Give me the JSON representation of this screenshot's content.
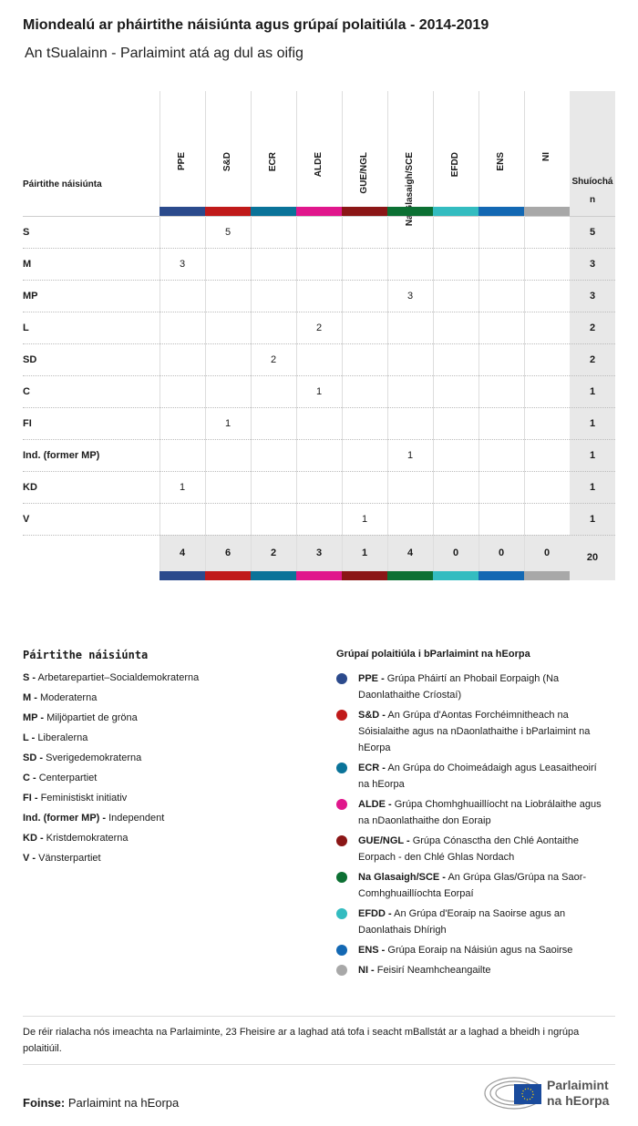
{
  "title": "Miondealú ar pháirtithe náisiúnta agus grúpaí polaitiúla - 2014-2019",
  "subtitle": "An tSualainn - Parlaimint atá ag dul as oifig",
  "chart_data": {
    "type": "table",
    "row_header": "Páirtithe náisiúnta",
    "total_header": "Shuíochán",
    "columns": [
      {
        "label": "PPE",
        "color": "#2b4a8c"
      },
      {
        "label": "S&D",
        "color": "#c01a1a"
      },
      {
        "label": "ECR",
        "color": "#0a7399"
      },
      {
        "label": "ALDE",
        "color": "#e0178c"
      },
      {
        "label": "GUE/NGL",
        "color": "#8b1616"
      },
      {
        "label": "Na Glasaigh/SCE",
        "color": "#0c7033"
      },
      {
        "label": "EFDD",
        "color": "#33bcc0"
      },
      {
        "label": "ENS",
        "color": "#1368b3"
      },
      {
        "label": "NI",
        "color": "#a8a8a8"
      }
    ],
    "rows": [
      {
        "party": "S",
        "values": [
          null,
          5,
          null,
          null,
          null,
          null,
          null,
          null,
          null
        ],
        "total": 5
      },
      {
        "party": "M",
        "values": [
          3,
          null,
          null,
          null,
          null,
          null,
          null,
          null,
          null
        ],
        "total": 3
      },
      {
        "party": "MP",
        "values": [
          null,
          null,
          null,
          null,
          null,
          3,
          null,
          null,
          null
        ],
        "total": 3
      },
      {
        "party": "L",
        "values": [
          null,
          null,
          null,
          2,
          null,
          null,
          null,
          null,
          null
        ],
        "total": 2
      },
      {
        "party": "SD",
        "values": [
          null,
          null,
          2,
          null,
          null,
          null,
          null,
          null,
          null
        ],
        "total": 2
      },
      {
        "party": "C",
        "values": [
          null,
          null,
          null,
          1,
          null,
          null,
          null,
          null,
          null
        ],
        "total": 1
      },
      {
        "party": "FI",
        "values": [
          null,
          1,
          null,
          null,
          null,
          null,
          null,
          null,
          null
        ],
        "total": 1
      },
      {
        "party": "Ind. (former MP)",
        "values": [
          null,
          null,
          null,
          null,
          null,
          1,
          null,
          null,
          null
        ],
        "total": 1
      },
      {
        "party": "KD",
        "values": [
          1,
          null,
          null,
          null,
          null,
          null,
          null,
          null,
          null
        ],
        "total": 1
      },
      {
        "party": "V",
        "values": [
          null,
          null,
          null,
          null,
          1,
          null,
          null,
          null,
          null
        ],
        "total": 1
      }
    ],
    "column_totals": [
      4,
      6,
      2,
      3,
      1,
      4,
      0,
      0,
      0
    ],
    "grand_total": 20
  },
  "legend_parties": {
    "heading": "Páirtithe náisiúnta",
    "items": [
      {
        "abbr": "S -",
        "name": "Arbetarepartiet–Socialdemokraterna"
      },
      {
        "abbr": "M -",
        "name": "Moderaterna"
      },
      {
        "abbr": "MP -",
        "name": "Miljöpartiet de gröna"
      },
      {
        "abbr": "L -",
        "name": "Liberalerna"
      },
      {
        "abbr": "SD -",
        "name": "Sverigedemokraterna"
      },
      {
        "abbr": "C -",
        "name": "Centerpartiet"
      },
      {
        "abbr": "FI -",
        "name": "Feministiskt initiativ"
      },
      {
        "abbr": "Ind. (former MP) -",
        "name": "Independent"
      },
      {
        "abbr": "KD -",
        "name": "Kristdemokraterna"
      },
      {
        "abbr": "V -",
        "name": "Vänsterpartiet"
      }
    ]
  },
  "legend_groups": {
    "heading": "Grúpaí polaitiúla i bParlaimint na hEorpa",
    "items": [
      {
        "abbr": "PPE -",
        "name": "Grúpa Pháirtí an Phobail Eorpaigh (Na Daonlathaithe Críostaí)",
        "color": "#2b4a8c"
      },
      {
        "abbr": "S&D -",
        "name": "An Grúpa d'Aontas Forchéimnitheach na Sóisialaithe agus na nDaonlathaithe i bParlaimint na hEorpa",
        "color": "#c01a1a"
      },
      {
        "abbr": "ECR -",
        "name": "An Grúpa do Choimeádaigh agus Leasaitheoirí na hEorpa",
        "color": "#0a7399"
      },
      {
        "abbr": "ALDE -",
        "name": "Grúpa Chomhghuaillíocht na Liobrálaithe agus na nDaonlathaithe don Eoraip",
        "color": "#e0178c"
      },
      {
        "abbr": "GUE/NGL -",
        "name": "Grúpa Cónasctha den Chlé Aontaithe Eorpach - den Chlé Ghlas Nordach",
        "color": "#8b1616"
      },
      {
        "abbr": "Na Glasaigh/SCE -",
        "name": "An Grúpa Glas/Grúpa na Saor-Comhghuaillíochta Eorpaí",
        "color": "#0c7033"
      },
      {
        "abbr": "EFDD -",
        "name": "An Grúpa d'Eoraip na Saoirse agus an Daonlathais Dhírigh",
        "color": "#33bcc0"
      },
      {
        "abbr": "ENS -",
        "name": "Grúpa Eoraip na Náisiún agus na Saoirse",
        "color": "#1368b3"
      },
      {
        "abbr": "NI -",
        "name": "Feisirí Neamhcheangailte",
        "color": "#a8a8a8"
      }
    ]
  },
  "note": "De réir rialacha nós imeachta na Parlaiminte, 23 Fheisire ar a laghad atá tofa i seacht mBallstát ar a laghad a bheidh i ngrúpa polaitiúil.",
  "source": {
    "label": "Foinse:",
    "value": "Parlaimint na hEorpa"
  },
  "logo": {
    "line1": "Parlaimint",
    "line2": "na hEorpa"
  }
}
